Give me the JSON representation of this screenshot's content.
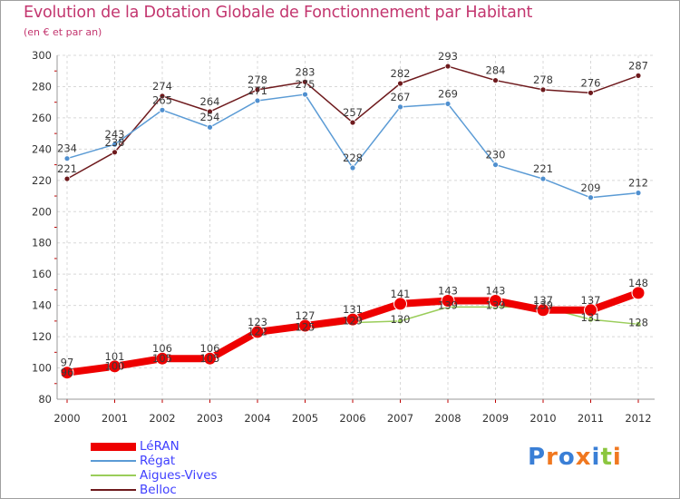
{
  "chart_data": {
    "type": "line",
    "title": "Evolution de la Dotation Globale de Fonctionnement par Habitant",
    "subtitle": "(en € et par an)",
    "xlabel": "",
    "ylabel": "",
    "x": [
      "2000",
      "2001",
      "2002",
      "2003",
      "2004",
      "2005",
      "2006",
      "2007",
      "2008",
      "2009",
      "2010",
      "2011",
      "2012"
    ],
    "ylim": [
      80,
      300
    ],
    "yticks": [
      "80",
      "100",
      "120",
      "140",
      "160",
      "180",
      "200",
      "220",
      "240",
      "260",
      "280",
      "300"
    ],
    "grid": true,
    "legend_position": "bottom-left",
    "series": [
      {
        "name": "Belloc",
        "color": "#6e1a1d",
        "values": [
          221,
          238,
          274,
          264,
          278,
          283,
          257,
          282,
          293,
          284,
          278,
          276,
          287
        ],
        "labels": [
          "221",
          "238",
          "274",
          "264",
          "278",
          "283",
          "257",
          "282",
          "293",
          "284",
          "278",
          "276",
          "287"
        ]
      },
      {
        "name": "Régat",
        "color": "#5b9bd5",
        "values": [
          234,
          243,
          265,
          254,
          271,
          275,
          228,
          267,
          269,
          230,
          221,
          209,
          212
        ],
        "labels": [
          "234",
          "243",
          "265",
          "254",
          "271",
          "275",
          "228",
          "267",
          "269",
          "230",
          "221",
          "209",
          "212"
        ]
      },
      {
        "name": "Aigues-Vives",
        "color": "#9acd5a",
        "values": [
          96,
          100,
          105,
          105,
          122,
          125,
          129,
          130,
          139,
          139,
          139,
          131,
          128
        ],
        "labels": [
          "96",
          "100",
          "105",
          "105",
          "122",
          "125",
          "129",
          "130",
          "139",
          "139",
          "139",
          "131",
          "128"
        ]
      },
      {
        "name": "LéRAN",
        "color": "#ee0000",
        "values": [
          97,
          101,
          106,
          106,
          123,
          127,
          131,
          141,
          143,
          143,
          137,
          137,
          148
        ],
        "labels": [
          "97",
          "101",
          "106",
          "106",
          "123",
          "127",
          "131",
          "141",
          "143",
          "143",
          "137",
          "137",
          "148"
        ]
      }
    ],
    "legend": [
      "LéRAN",
      "Régat",
      "Aigues-Vives",
      "Belloc"
    ]
  },
  "legend_items": [
    {
      "label": "LéRAN",
      "color": "#ee0000",
      "stroke": 9
    },
    {
      "label": "Régat",
      "color": "#5b9bd5",
      "stroke": 2
    },
    {
      "label": "Aigues-Vives",
      "color": "#9acd5a",
      "stroke": 2
    },
    {
      "label": "Belloc",
      "color": "#6e1a1d",
      "stroke": 2
    }
  ],
  "logo": {
    "letters": [
      {
        "ch": "P",
        "color": "#3a7fd6"
      },
      {
        "ch": "r",
        "color": "#f07820"
      },
      {
        "ch": "o",
        "color": "#3a7fd6"
      },
      {
        "ch": "x",
        "color": "#f07820"
      },
      {
        "ch": "i",
        "color": "#3a7fd6"
      },
      {
        "ch": "t",
        "color": "#8cc63f"
      },
      {
        "ch": "i",
        "color": "#f07820"
      }
    ]
  }
}
